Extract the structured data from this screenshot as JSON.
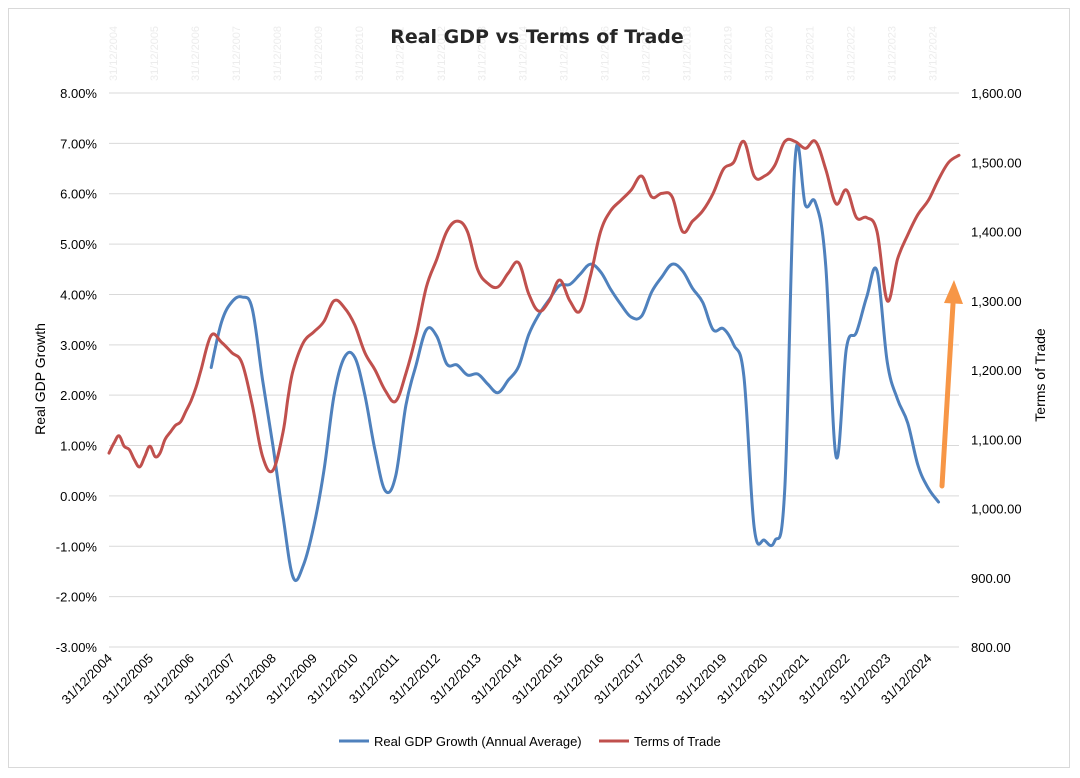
{
  "chart_data": {
    "type": "line",
    "title": "Real GDP vs Terms of Trade",
    "ylabel_left": "Real GDP Growth",
    "ylabel_right": "Terms of Trade",
    "ylim_left": [
      -0.03,
      0.08
    ],
    "ylim_right": [
      800,
      1600
    ],
    "yticks_left": [
      "8.00%",
      "7.00%",
      "6.00%",
      "5.00%",
      "4.00%",
      "3.00%",
      "2.00%",
      "1.00%",
      "0.00%",
      "-1.00%",
      "-2.00%",
      "-3.00%"
    ],
    "yticks_right": [
      "1,600.00",
      "1,500.00",
      "1,400.00",
      "1,300.00",
      "1,200.00",
      "1,100.00",
      "1,000.00",
      "900.00",
      "800.00"
    ],
    "x_range": [
      "2004-12-31",
      "2025-09-30"
    ],
    "x_ticks": [
      "31/12/2004",
      "31/12/2005",
      "31/12/2006",
      "31/12/2007",
      "31/12/2008",
      "31/12/2009",
      "31/12/2010",
      "31/12/2011",
      "31/12/2012",
      "31/12/2013",
      "31/12/2014",
      "31/12/2015",
      "31/12/2016",
      "31/12/2017",
      "31/12/2018",
      "31/12/2019",
      "31/12/2020",
      "31/12/2021",
      "31/12/2022",
      "31/12/2023",
      "31/12/2024"
    ],
    "gridlines": true,
    "legend_position": "bottom",
    "arrow_color": "#F79646",
    "series": [
      {
        "name": "Real GDP Growth (Annual Average)",
        "axis": "left",
        "color": "#4F81BD",
        "x": [
          "2007-06-30",
          "2007-09-30",
          "2007-12-31",
          "2008-03-31",
          "2008-06-30",
          "2008-09-30",
          "2008-12-31",
          "2009-03-31",
          "2009-06-30",
          "2009-09-30",
          "2009-12-31",
          "2010-03-31",
          "2010-06-30",
          "2010-09-30",
          "2010-12-31",
          "2011-03-31",
          "2011-06-30",
          "2011-09-30",
          "2011-12-31",
          "2012-03-31",
          "2012-06-30",
          "2012-09-30",
          "2012-12-31",
          "2013-03-31",
          "2013-06-30",
          "2013-09-30",
          "2013-12-31",
          "2014-03-31",
          "2014-06-30",
          "2014-09-30",
          "2014-12-31",
          "2015-03-31",
          "2015-06-30",
          "2015-09-30",
          "2015-12-31",
          "2016-03-31",
          "2016-06-30",
          "2016-09-30",
          "2016-12-31",
          "2017-03-31",
          "2017-06-30",
          "2017-09-30",
          "2017-12-31",
          "2018-03-31",
          "2018-06-30",
          "2018-09-30",
          "2018-12-31",
          "2019-03-31",
          "2019-06-30",
          "2019-09-30",
          "2019-12-31",
          "2020-03-31",
          "2020-06-30",
          "2020-09-30",
          "2020-12-31",
          "2021-03-31",
          "2021-06-30",
          "2021-09-30",
          "2021-12-31",
          "2022-03-31",
          "2022-06-30",
          "2022-09-30",
          "2022-12-31",
          "2023-03-31",
          "2023-06-30",
          "2023-09-30",
          "2023-12-31",
          "2024-03-31",
          "2024-06-30",
          "2024-09-30",
          "2024-12-31",
          "2025-03-31",
          "2025-06-30"
        ],
        "values": [
          0.0255,
          0.0345,
          0.0385,
          0.0395,
          0.0372,
          0.023,
          0.01,
          -0.004,
          -0.0162,
          -0.0137,
          -0.006,
          0.005,
          0.02,
          0.0275,
          0.0275,
          0.02,
          0.009,
          0.001,
          0.004,
          0.018,
          0.026,
          0.033,
          0.0317,
          0.0262,
          0.026,
          0.024,
          0.0242,
          0.0222,
          0.0205,
          0.023,
          0.0257,
          0.032,
          0.036,
          0.039,
          0.0418,
          0.042,
          0.044,
          0.046,
          0.0445,
          0.041,
          0.038,
          0.0355,
          0.0357,
          0.0405,
          0.0435,
          0.046,
          0.0447,
          0.0412,
          0.0384,
          0.033,
          0.0332,
          0.03,
          0.0237,
          -0.0063,
          -0.0088,
          -0.009,
          0.0015,
          0.0667,
          0.0577,
          0.0582,
          0.0458,
          0.0078,
          0.0293,
          0.0325,
          0.0395,
          0.0447,
          0.0265,
          0.0192,
          0.0145,
          0.006,
          0.0015,
          -0.0012,
          0.004
        ],
        "visible_count": 72
      },
      {
        "name": "Terms of Trade",
        "axis": "right",
        "color": "#C0504D",
        "x": [
          "2004-12-31",
          "2005-02-15",
          "2005-03-31",
          "2005-05-15",
          "2005-06-30",
          "2005-08-15",
          "2005-09-30",
          "2005-11-15",
          "2005-12-31",
          "2006-02-15",
          "2006-03-31",
          "2006-05-15",
          "2006-06-30",
          "2006-08-15",
          "2006-09-30",
          "2006-11-15",
          "2006-12-31",
          "2007-02-15",
          "2007-03-31",
          "2007-06-30",
          "2007-09-30",
          "2007-12-31",
          "2008-03-31",
          "2008-06-30",
          "2008-09-30",
          "2008-12-31",
          "2009-03-31",
          "2009-05-15",
          "2009-06-30",
          "2009-09-30",
          "2009-12-31",
          "2010-03-31",
          "2010-06-30",
          "2010-09-30",
          "2010-12-31",
          "2011-03-31",
          "2011-06-30",
          "2011-09-30",
          "2011-12-31",
          "2012-03-31",
          "2012-06-30",
          "2012-09-30",
          "2012-12-31",
          "2013-03-31",
          "2013-06-30",
          "2013-09-30",
          "2013-12-31",
          "2014-03-31",
          "2014-06-30",
          "2014-09-30",
          "2014-12-31",
          "2015-03-31",
          "2015-06-30",
          "2015-09-30",
          "2015-12-31",
          "2016-03-31",
          "2016-06-30",
          "2016-09-30",
          "2016-12-31",
          "2017-03-31",
          "2017-06-30",
          "2017-09-30",
          "2017-12-31",
          "2018-03-31",
          "2018-06-30",
          "2018-09-30",
          "2018-12-31",
          "2019-03-31",
          "2019-06-30",
          "2019-09-30",
          "2019-12-31",
          "2020-03-31",
          "2020-06-30",
          "2020-09-30",
          "2020-12-31",
          "2021-03-31",
          "2021-06-30",
          "2021-09-30",
          "2021-12-31",
          "2022-03-31",
          "2022-06-30",
          "2022-09-30",
          "2022-12-31",
          "2023-03-31",
          "2023-06-30",
          "2023-09-30",
          "2023-12-31",
          "2024-03-31",
          "2024-06-30",
          "2024-09-30",
          "2024-12-31",
          "2025-03-31",
          "2025-06-30",
          "2025-09-30"
        ],
        "values": [
          1080,
          1095,
          1105,
          1090,
          1085,
          1070,
          1060,
          1075,
          1090,
          1075,
          1080,
          1100,
          1110,
          1120,
          1125,
          1140,
          1155,
          1175,
          1200,
          1250,
          1240,
          1225,
          1210,
          1150,
          1075,
          1055,
          1110,
          1160,
          1200,
          1240,
          1255,
          1270,
          1300,
          1290,
          1265,
          1225,
          1200,
          1170,
          1155,
          1195,
          1250,
          1320,
          1360,
          1400,
          1415,
          1400,
          1345,
          1325,
          1320,
          1340,
          1355,
          1310,
          1285,
          1300,
          1330,
          1300,
          1285,
          1335,
          1400,
          1430,
          1445,
          1460,
          1480,
          1450,
          1455,
          1450,
          1400,
          1415,
          1430,
          1455,
          1490,
          1500,
          1530,
          1480,
          1480,
          1495,
          1530,
          1530,
          1520,
          1530,
          1490,
          1440,
          1460,
          1420,
          1420,
          1400,
          1300,
          1360,
          1395,
          1425,
          1445,
          1475,
          1500,
          1510
        ]
      }
    ]
  }
}
